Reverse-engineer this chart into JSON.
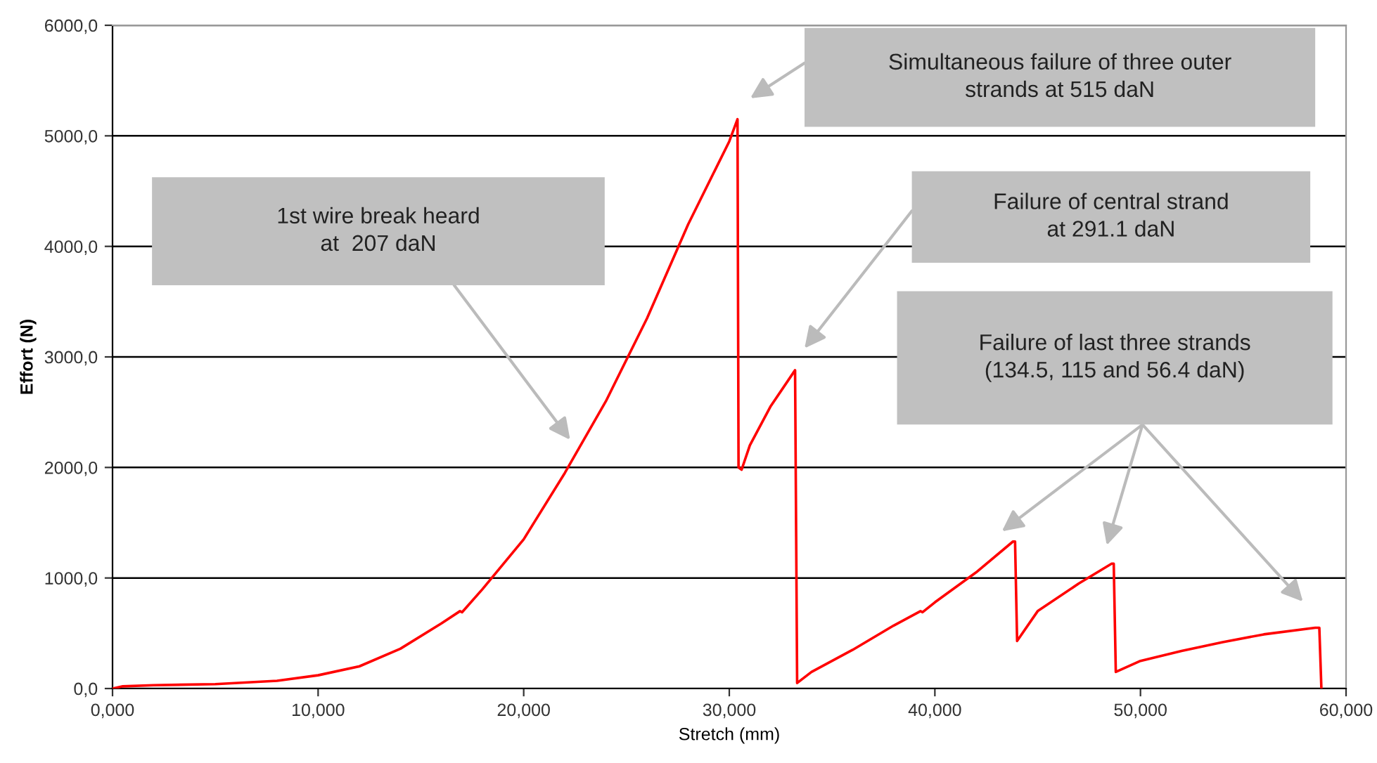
{
  "chart_data": {
    "type": "line",
    "xlabel": "Stretch (mm)",
    "ylabel": "Effort (N)",
    "x": [
      0,
      0.5,
      2,
      5,
      8,
      10,
      12,
      14,
      16,
      16.9,
      17,
      18,
      20,
      22,
      24,
      26,
      28,
      30,
      30.4,
      30.45,
      30.6,
      31,
      32,
      33.2,
      33.3,
      34,
      36,
      38,
      39.3,
      39.4,
      40,
      42,
      43.8,
      43.9,
      44,
      45,
      47,
      48.6,
      48.7,
      48.8,
      50,
      52,
      54,
      56,
      58.5,
      58.7,
      58.8
    ],
    "series": [
      {
        "color": "#ff0000",
        "values": [
          0,
          20,
          30,
          40,
          70,
          120,
          200,
          360,
          590,
          700,
          690,
          900,
          1350,
          1950,
          2600,
          3350,
          4200,
          4950,
          5150,
          2000,
          1980,
          2200,
          2550,
          2880,
          50,
          150,
          350,
          570,
          700,
          690,
          780,
          1050,
          1330,
          1330,
          430,
          700,
          950,
          1130,
          1130,
          150,
          250,
          340,
          420,
          490,
          550,
          550,
          0
        ]
      }
    ],
    "xlim": [
      0,
      60
    ],
    "ylim": [
      0,
      6000
    ],
    "xticks": [
      {
        "value": 0,
        "label": "0,000"
      },
      {
        "value": 10,
        "label": "10,000"
      },
      {
        "value": 20,
        "label": "20,000"
      },
      {
        "value": 30,
        "label": "30,000"
      },
      {
        "value": 40,
        "label": "40,000"
      },
      {
        "value": 50,
        "label": "50,000"
      },
      {
        "value": 60,
        "label": "60,000"
      }
    ],
    "yticks": [
      {
        "value": 0,
        "label": "0,0"
      },
      {
        "value": 1000,
        "label": "1000,0"
      },
      {
        "value": 2000,
        "label": "2000,0"
      },
      {
        "value": 3000,
        "label": "3000,0"
      },
      {
        "value": 4000,
        "label": "4000,0"
      },
      {
        "value": 5000,
        "label": "5000,0"
      },
      {
        "value": 6000,
        "label": "6000,0"
      }
    ],
    "grid": "y",
    "marker": "none",
    "line_style": "solid",
    "legend": false,
    "annotations": [
      "1st wire break heard\nat  207 daN",
      "Simultaneous failure of three outer\nstrands at 515 daN",
      "Failure of central strand\nat 291.1 daN",
      "Failure of last three strands\n(134.5, 115 and 56.4 daN)"
    ]
  }
}
